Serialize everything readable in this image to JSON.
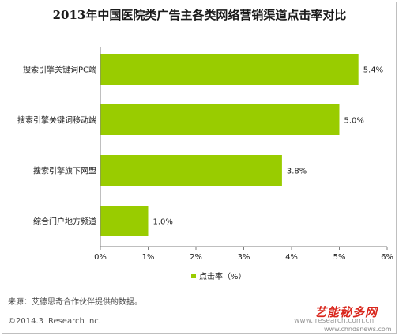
{
  "title": "2013年中国医院类广告主各类网络营销渠道点击率对比",
  "colors": {
    "bar": "#99cc00",
    "axis": "#7f7f7f",
    "text": "#222222"
  },
  "chart_data": {
    "type": "bar",
    "orientation": "horizontal",
    "categories": [
      "搜索引擎关键词PC端",
      "搜索引擎关键词移动端",
      "搜索引擎旗下网盟",
      "综合门户地方频道"
    ],
    "values": [
      5.4,
      5.0,
      3.8,
      1.0
    ],
    "value_labels": [
      "5.4%",
      "5.0%",
      "3.8%",
      "1.0%"
    ],
    "series": [
      {
        "name": "点击率（%）",
        "values": [
          5.4,
          5.0,
          3.8,
          1.0
        ]
      }
    ],
    "xlim": [
      0,
      6
    ],
    "ticks": [
      0,
      1,
      2,
      3,
      4,
      5,
      6
    ],
    "tick_labels": [
      "0%",
      "1%",
      "2%",
      "3%",
      "4%",
      "5%",
      "6%"
    ],
    "grid": false,
    "legend_position": "bottom-center"
  },
  "footer": {
    "source": "来源：艾德思奇合作伙伴提供的数据。",
    "copyright": "©2014.3 iResearch Inc."
  },
  "watermark": {
    "brand": "艺能秘多网",
    "url1": "www.iresearch.com.cn",
    "url2": "www.chndsnews.com"
  }
}
